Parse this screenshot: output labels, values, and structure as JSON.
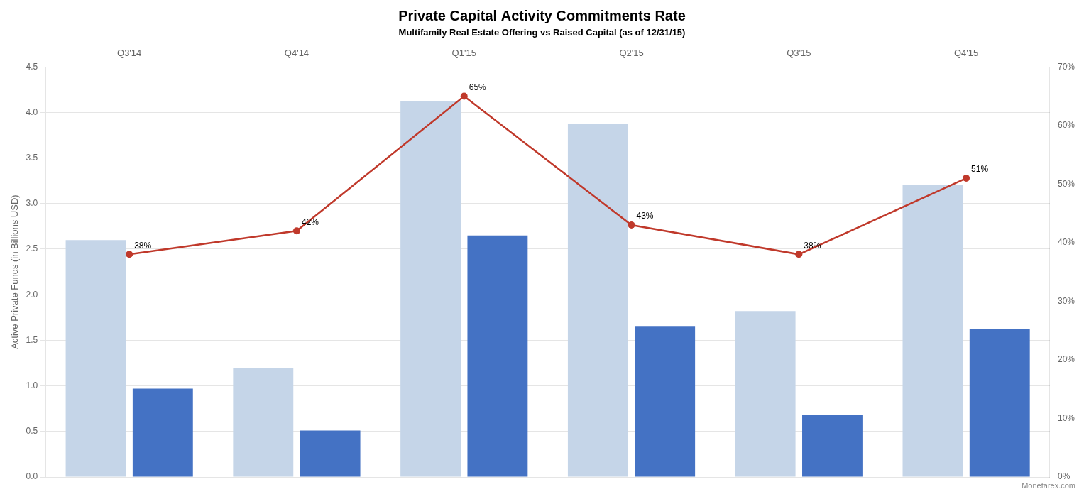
{
  "chart_data": {
    "type": "bar",
    "title": "Private Capital Activity Commitments Rate",
    "subtitle": "Multifamily Real Estate Offering vs Raised Capital (as of 12/31/15)",
    "categories": [
      "Q3'14",
      "Q4'14",
      "Q1'15",
      "Q2'15",
      "Q3'15",
      "Q4'15"
    ],
    "series": [
      {
        "color": "#c5d5e8",
        "values": [
          2.6,
          1.2,
          4.12,
          3.87,
          1.82,
          3.2
        ]
      },
      {
        "color": "#4472c4",
        "values": [
          0.97,
          0.51,
          2.65,
          1.65,
          0.68,
          1.62
        ]
      },
      {
        "type": "line",
        "axis": "y2",
        "color": "#c0392b",
        "marker": "circle",
        "line_style": "solid",
        "data_labels": true,
        "values": [
          0.38,
          0.42,
          0.65,
          0.43,
          0.38,
          0.51
        ],
        "value_labels": [
          "38%",
          "42%",
          "65%",
          "43%",
          "38%",
          "51%"
        ]
      }
    ],
    "ylabel": "Active Private Funds (in Billions USD)",
    "ylim": [
      0,
      4.5
    ],
    "yticks": [
      {
        "value": 0,
        "label": "0.0"
      },
      0.5,
      {
        "value": 1.0,
        "label": "1.0"
      },
      1.5,
      {
        "value": 2.0,
        "label": "2.0"
      },
      2.5,
      {
        "value": 3.0,
        "label": "3.0"
      },
      3.5,
      {
        "value": 4.0,
        "label": "4.0"
      },
      4.5
    ],
    "y2lim": [
      0,
      0.7
    ],
    "y2ticks": [
      {
        "value": 0,
        "label": "0%"
      },
      {
        "value": 0.1,
        "label": "10%"
      },
      {
        "value": 0.2,
        "label": "20%"
      },
      {
        "value": 0.3,
        "label": "30%"
      },
      {
        "value": 0.4,
        "label": "40%"
      },
      {
        "value": 0.5,
        "label": "50%"
      },
      {
        "value": 0.6,
        "label": "60%"
      },
      {
        "value": 0.7,
        "label": "70%"
      }
    ],
    "grid": true,
    "annotations": [
      "Monetarex.com"
    ]
  }
}
